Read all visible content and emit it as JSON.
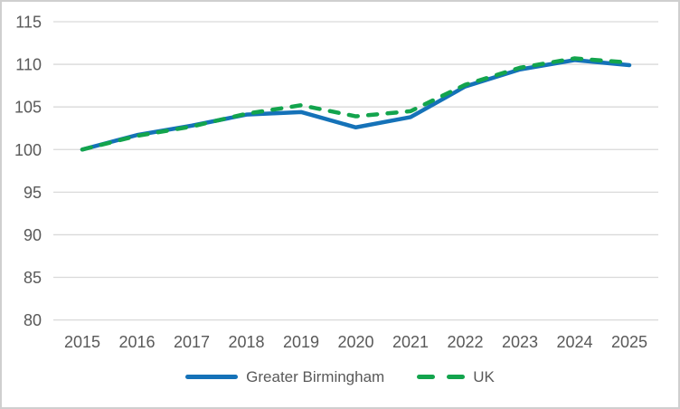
{
  "chart_data": {
    "type": "line",
    "title": "",
    "xlabel": "",
    "ylabel": "",
    "categories": [
      "2015",
      "2016",
      "2017",
      "2018",
      "2019",
      "2020",
      "2021",
      "2022",
      "2023",
      "2024",
      "2025"
    ],
    "series": [
      {
        "name": "Greater Birmingham",
        "style": "solid",
        "color": "#1572b8",
        "values": [
          100,
          101.7,
          102.8,
          104.1,
          104.4,
          102.6,
          103.8,
          107.4,
          109.4,
          110.5,
          109.9
        ]
      },
      {
        "name": "UK",
        "style": "dashed",
        "color": "#13a44d",
        "values": [
          100,
          101.6,
          102.7,
          104.2,
          105.2,
          103.9,
          104.5,
          107.6,
          109.6,
          110.7,
          110.2
        ]
      }
    ],
    "ylim": [
      80,
      115
    ],
    "yticks": [
      80,
      85,
      90,
      95,
      100,
      105,
      110,
      115
    ],
    "grid": "horizontal gridlines only",
    "legend_position": "bottom",
    "gridline_color": "#d9d9d9",
    "label_color": "#595959",
    "background_color": "#ffffff"
  }
}
